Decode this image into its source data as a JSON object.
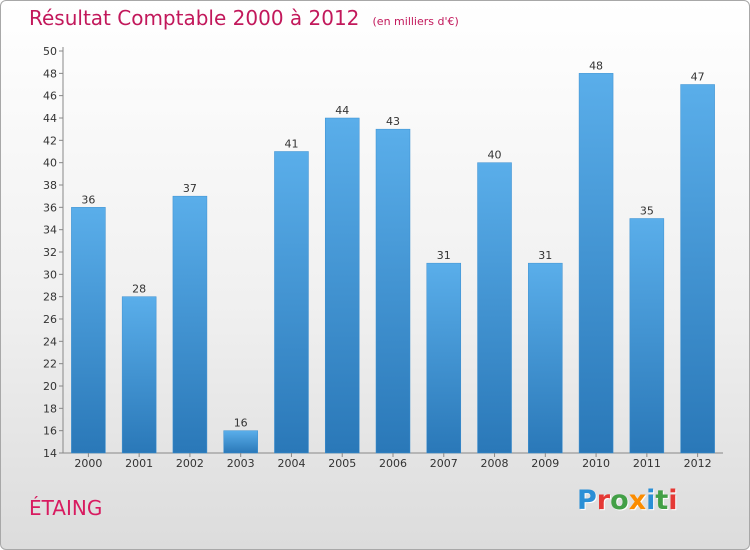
{
  "header": {
    "title": "Résultat Comptable 2000 à 2012",
    "subtitle": "(en milliers d'€)"
  },
  "footer": {
    "commune": "ÉTAING",
    "logo": {
      "text": "Proxiti",
      "letters": [
        "P",
        "r",
        "o",
        "x",
        "i",
        "t",
        "i"
      ],
      "colors": [
        "#2a8fd6",
        "#e53935",
        "#43a047",
        "#fb8c00",
        "#2a8fd6",
        "#43a047",
        "#e53935"
      ]
    }
  },
  "colors": {
    "bar_light": "#5aaeea",
    "bar_dark": "#2a78b8",
    "axis": "#888888",
    "grid": "#bbbbbb",
    "title": "#c2185b"
  },
  "chart_data": {
    "type": "bar",
    "categories": [
      "2000",
      "2001",
      "2002",
      "2003",
      "2004",
      "2005",
      "2006",
      "2007",
      "2008",
      "2009",
      "2010",
      "2011",
      "2012"
    ],
    "values": [
      36,
      28,
      37,
      16,
      41,
      44,
      43,
      31,
      40,
      31,
      48,
      35,
      47
    ],
    "title": "Résultat Comptable 2000 à 2012",
    "xlabel": "",
    "ylabel": "",
    "ylim": [
      14,
      50
    ],
    "yticks": [
      14,
      16,
      18,
      20,
      22,
      24,
      26,
      28,
      30,
      32,
      34,
      36,
      38,
      40,
      42,
      44,
      46,
      48,
      50
    ],
    "grid": false,
    "legend": "none"
  }
}
